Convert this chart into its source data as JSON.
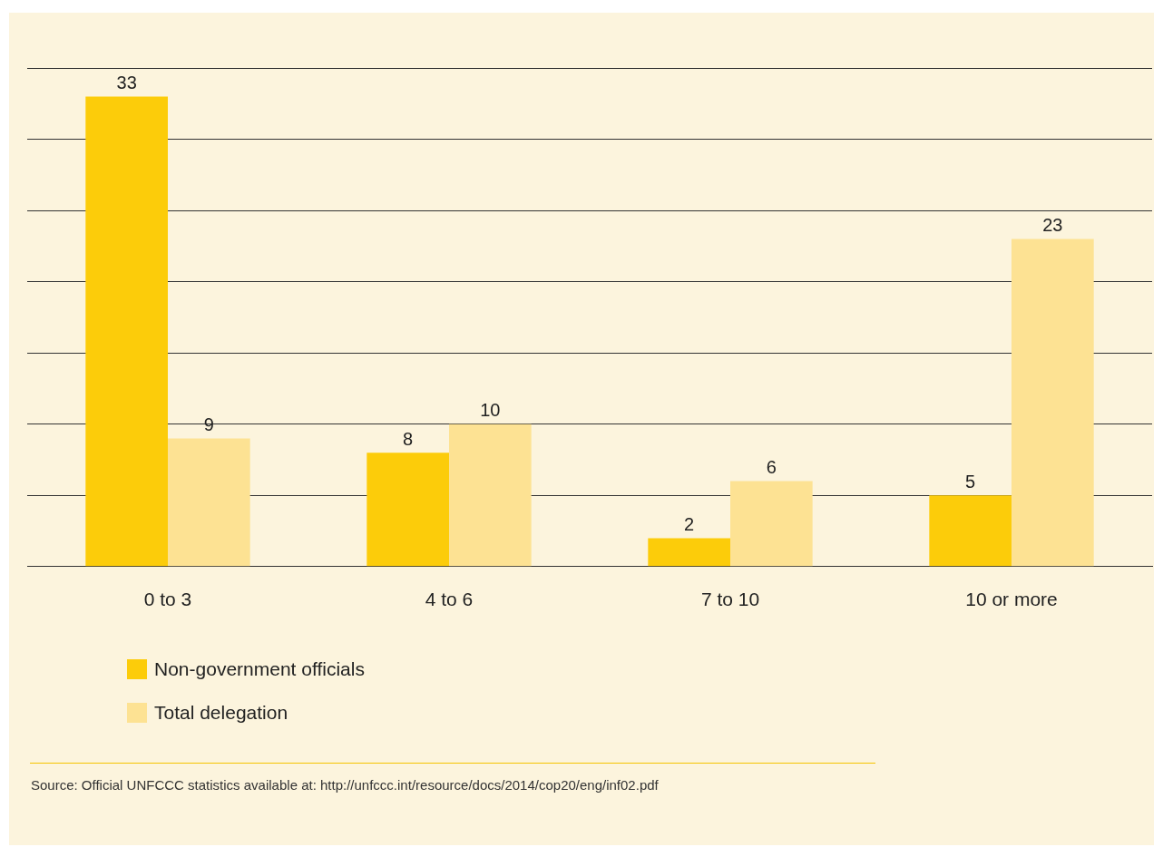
{
  "chart_data": {
    "type": "bar",
    "categories": [
      "0 to 3",
      "4 to 6",
      "7 to 10",
      "10 or more"
    ],
    "series": [
      {
        "name": "Non-government officials",
        "color": "#fccc0a",
        "values": [
          33,
          8,
          2,
          5
        ]
      },
      {
        "name": "Total delegation",
        "color": "#fde293",
        "values": [
          9,
          10,
          6,
          23
        ]
      }
    ],
    "ylim": [
      0,
      35
    ],
    "yticks": [
      {
        "value": 0,
        "label": null
      },
      {
        "value": 5,
        "label": null
      },
      {
        "value": 10,
        "label": null
      },
      {
        "value": 15,
        "label": null
      },
      {
        "value": 20,
        "label": null
      },
      {
        "value": 25,
        "label": null
      },
      {
        "value": 30,
        "label": null
      },
      {
        "value": 35,
        "label": null
      }
    ],
    "tick_labels": "x",
    "grid": "y",
    "data_labels": true,
    "legend": "bottom left",
    "annotations": [
      "Source: Official UNFCCC statistics available at: http://unfccc.int/resource/docs/2014/cop20/eng/inf02.pdf"
    ]
  }
}
